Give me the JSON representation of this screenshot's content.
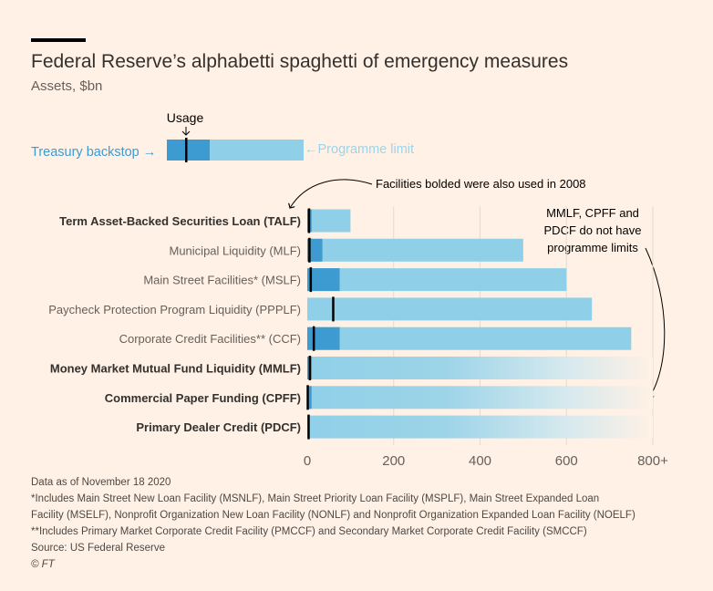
{
  "header": {
    "title": "Federal Reserve’s alphabetti spaghetti of emergency measures",
    "subtitle": "Assets, $bn"
  },
  "legend": {
    "usage": "Usage",
    "backstop": "Treasury backstop →",
    "limit": "←Programme limit"
  },
  "annotations": {
    "bolded": "Facilities bolded were also used in 2008",
    "no_limits": [
      "MMLF, CPFF and",
      "PDCF do not have",
      "programme limits"
    ]
  },
  "colors": {
    "limit": "#8fd0e8",
    "backstop": "#3d9bd1",
    "usage": "#000000",
    "background": "#fff1e5"
  },
  "chart_data": {
    "type": "bar",
    "title": "Federal Reserve’s alphabetti spaghetti of emergency measures",
    "ylabel": "",
    "xlabel": "Assets, $bn",
    "xlim": [
      0,
      800
    ],
    "ticks": [
      "0",
      "200",
      "400",
      "600",
      "800+"
    ],
    "tick_values": [
      0,
      200,
      400,
      600,
      800
    ],
    "categories": [
      "Term Asset-Backed Securities Loan (TALF)",
      "Municipal Liquidity (MLF)",
      "Main Street Facilities* (MSLF)",
      "Paycheck Protection Program Liquidity (PPPLF)",
      "Corporate Credit Facilities** (CCF)",
      "Money Market Mutual Fund Liquidity (MMLF)",
      "Commercial Paper Funding (CPFF)",
      "Primary Dealer Credit (PDCF)"
    ],
    "bold": [
      true,
      false,
      false,
      false,
      false,
      true,
      true,
      true
    ],
    "series": [
      {
        "name": "Programme limit",
        "values": [
          100,
          500,
          600,
          659,
          750,
          null,
          null,
          null
        ]
      },
      {
        "name": "Treasury backstop",
        "values": [
          10,
          35,
          75,
          0,
          75,
          10,
          10,
          0
        ]
      },
      {
        "name": "Usage",
        "values": [
          4,
          5,
          8,
          60,
          15,
          6,
          1,
          3
        ]
      }
    ]
  },
  "notes": [
    "Data as of November 18 2020",
    "*Includes Main Street New Loan Facility (MSNLF), Main Street Priority Loan Facility (MSPLF), Main Street Expanded Loan",
    "Facility (MSELF), Nonprofit Organization New Loan Facility (NONLF) and Nonprofit Organization Expanded Loan Facility (NOELF)",
    "**Includes Primary Market Corporate Credit Facility (PMCCF) and Secondary Market Corporate Credit Facility (SMCCF)",
    "Source: US Federal Reserve",
    "© FT"
  ]
}
